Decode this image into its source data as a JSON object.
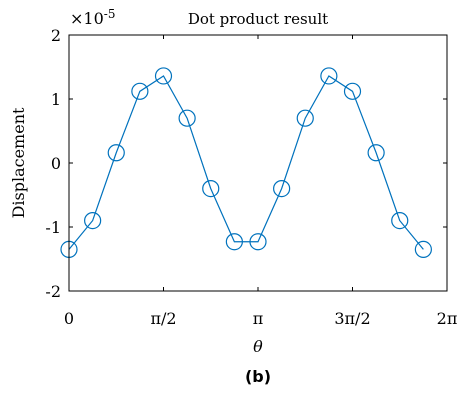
{
  "chart_data": {
    "type": "line",
    "title": "Dot product result",
    "xlabel": "θ",
    "ylabel": "Displacement",
    "exponent_base": "×10",
    "exponent_power": "-5",
    "xlim": [
      0,
      6.283185
    ],
    "ylim": [
      -2,
      2
    ],
    "x_ticks": [
      {
        "value": 0,
        "label": "0"
      },
      {
        "value": 1.570796,
        "label": "π/2"
      },
      {
        "value": 3.141593,
        "label": "π"
      },
      {
        "value": 4.712389,
        "label": "3π/2"
      },
      {
        "value": 6.283185,
        "label": "2π"
      }
    ],
    "y_ticks": [
      {
        "value": -2,
        "label": "-2"
      },
      {
        "value": -1,
        "label": "-1"
      },
      {
        "value": 0,
        "label": "0"
      },
      {
        "value": 1,
        "label": "1"
      },
      {
        "value": 2,
        "label": "2"
      }
    ],
    "grid": false,
    "series": [
      {
        "color": "#0072BD",
        "marker": "circle",
        "x": [
          0.0,
          0.3927,
          0.7854,
          1.1781,
          1.5708,
          1.9635,
          2.3562,
          2.7489,
          3.1416,
          3.5343,
          3.927,
          4.3197,
          4.7124,
          5.1051,
          5.4978,
          5.8905
        ],
        "y": [
          -1.35,
          -0.9,
          0.16,
          1.12,
          1.36,
          0.7,
          -0.4,
          -1.23,
          -1.23,
          -0.4,
          0.7,
          1.36,
          1.12,
          0.16,
          -0.9,
          -1.35
        ]
      }
    ]
  },
  "caption": "(b)"
}
